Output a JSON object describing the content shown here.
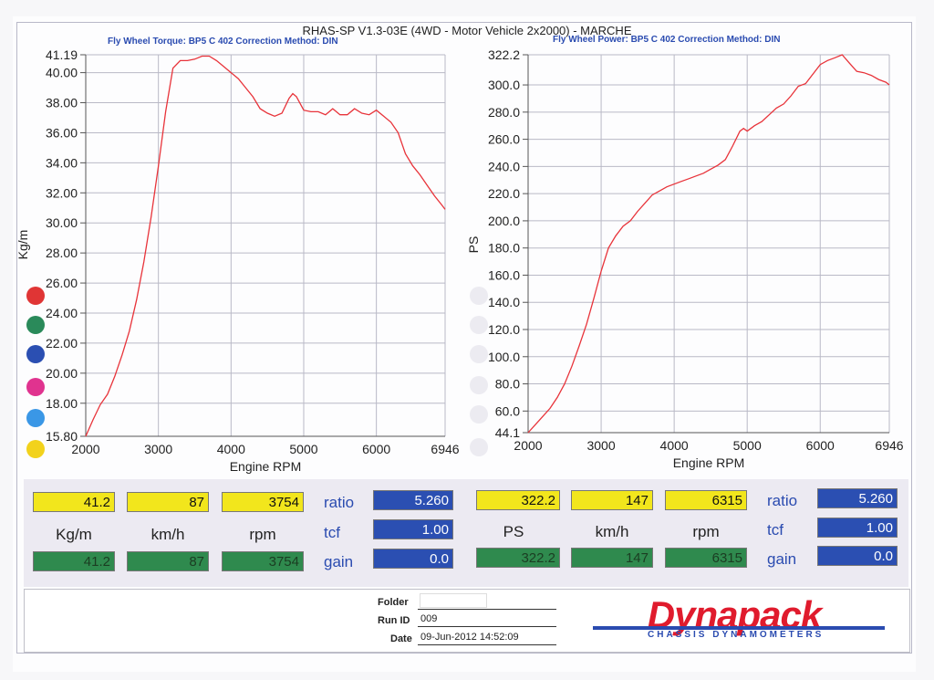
{
  "header": {
    "title": "RHAS-SP V1.3-03E  (4WD - Motor Vehicle 2x2000) - MARCHE",
    "left_subtitle": "Fly Wheel Torque: BP5 C 402      Correction Method: DIN",
    "right_subtitle": "Fly Wheel Power: BP5 C 402      Correction Method: DIN"
  },
  "chart_data": [
    {
      "type": "line",
      "xlabel": "Engine RPM",
      "ylabel": "Kg/m",
      "xlim": [
        2000,
        6946
      ],
      "ylim": [
        15.8,
        41.19
      ],
      "x_ticks": [
        "2000",
        "3000",
        "4000",
        "5000",
        "6000",
        "6946"
      ],
      "y_ticks": [
        "15.80",
        "18.00",
        "20.00",
        "22.00",
        "24.00",
        "26.00",
        "28.00",
        "30.00",
        "32.00",
        "34.00",
        "36.00",
        "38.00",
        "40.00",
        "41.19"
      ],
      "grid": true,
      "color": "#e8333a",
      "series": [
        {
          "x": [
            2000,
            2100,
            2200,
            2300,
            2400,
            2500,
            2600,
            2700,
            2800,
            2900,
            3000,
            3100,
            3200,
            3300,
            3400,
            3500,
            3600,
            3700,
            3800,
            3900,
            4000,
            4100,
            4200,
            4300,
            4400,
            4500,
            4600,
            4700,
            4800,
            4850,
            4900,
            5000,
            5100,
            5200,
            5300,
            5400,
            5500,
            5600,
            5700,
            5800,
            5900,
            6000,
            6100,
            6200,
            6300,
            6400,
            6500,
            6600,
            6700,
            6800,
            6900,
            6946
          ],
          "values": [
            15.8,
            16.9,
            17.9,
            18.6,
            19.8,
            21.2,
            22.8,
            24.9,
            27.4,
            30.4,
            33.8,
            37.4,
            40.3,
            40.8,
            40.8,
            40.9,
            41.1,
            41.1,
            40.8,
            40.4,
            40.0,
            39.6,
            39.0,
            38.4,
            37.6,
            37.3,
            37.1,
            37.3,
            38.3,
            38.6,
            38.4,
            37.5,
            37.4,
            37.4,
            37.2,
            37.6,
            37.2,
            37.2,
            37.6,
            37.3,
            37.2,
            37.5,
            37.1,
            36.7,
            36.0,
            34.6,
            33.8,
            33.2,
            32.5,
            31.8,
            31.2,
            30.9
          ]
        }
      ]
    },
    {
      "type": "line",
      "xlabel": "Engine RPM",
      "ylabel": "PS",
      "xlim": [
        2000,
        6946
      ],
      "ylim": [
        44.1,
        322.2
      ],
      "x_ticks": [
        "2000",
        "3000",
        "4000",
        "5000",
        "6000",
        "6946"
      ],
      "y_ticks": [
        "44.1",
        "60.0",
        "80.0",
        "100.0",
        "120.0",
        "140.0",
        "160.0",
        "180.0",
        "200.0",
        "220.0",
        "240.0",
        "260.0",
        "280.0",
        "300.0",
        "322.2"
      ],
      "grid": true,
      "color": "#e8333a",
      "series": [
        {
          "x": [
            2000,
            2100,
            2200,
            2300,
            2400,
            2500,
            2600,
            2700,
            2800,
            2900,
            3000,
            3100,
            3200,
            3300,
            3400,
            3500,
            3600,
            3700,
            3800,
            3900,
            4000,
            4100,
            4200,
            4300,
            4400,
            4500,
            4600,
            4700,
            4800,
            4900,
            4950,
            5000,
            5100,
            5200,
            5300,
            5400,
            5500,
            5600,
            5700,
            5800,
            5900,
            6000,
            6100,
            6200,
            6300,
            6400,
            6500,
            6600,
            6700,
            6800,
            6900,
            6946
          ],
          "values": [
            44.1,
            50.0,
            56.0,
            62.0,
            70.0,
            80.0,
            93.0,
            108.0,
            124.0,
            143.0,
            163.0,
            180.0,
            189.0,
            196.0,
            200.0,
            207.0,
            213.0,
            219.0,
            222.0,
            225.0,
            227.0,
            229.0,
            231.0,
            233.0,
            235.0,
            238.0,
            241.0,
            245.0,
            255.0,
            266.0,
            268.0,
            266.0,
            270.0,
            273.0,
            278.0,
            283.0,
            286.0,
            292.0,
            299.0,
            301.0,
            308.0,
            315.0,
            318.0,
            320.0,
            322.2,
            316.0,
            310.0,
            309.0,
            307.0,
            304.0,
            302.0,
            300.0
          ]
        }
      ]
    }
  ],
  "left_panel": {
    "max_torque": "41.2",
    "max_speed": "87",
    "max_rpm": "3754",
    "ratio_label": "ratio",
    "ratio_value": "5.260",
    "unit_torque": "Kg/m",
    "unit_speed": "km/h",
    "unit_rpm": "rpm",
    "tcf_label": "tcf",
    "tcf_value": "1.00",
    "cur_torque": "41.2",
    "cur_speed": "87",
    "cur_rpm": "3754",
    "gain_label": "gain",
    "gain_value": "0.0"
  },
  "right_panel": {
    "max_power": "322.2",
    "max_speed": "147",
    "max_rpm": "6315",
    "ratio_label": "ratio",
    "ratio_value": "5.260",
    "unit_power": "PS",
    "unit_speed": "km/h",
    "unit_rpm": "rpm",
    "tcf_label": "tcf",
    "tcf_value": "1.00",
    "cur_power": "322.2",
    "cur_speed": "147",
    "cur_rpm": "6315",
    "gain_label": "gain",
    "gain_value": "0.0"
  },
  "footer": {
    "folder_label": "Folder",
    "folder_value": "",
    "runid_label": "Run ID",
    "runid_value": "009",
    "date_label": "Date",
    "date_value": "09-Jun-2012  14:52:09"
  },
  "logo": {
    "word": "Dynapack",
    "tagline": "CHASSIS   DYNAMOMETERS"
  },
  "colors": {
    "legend_dots": [
      "#e03535",
      "#2a8a5a",
      "#2b4fb2",
      "#e0338f",
      "#3a97e6",
      "#f2d21c"
    ],
    "curve": "#e8333a",
    "yellow": "#f2e61c",
    "green": "#2f8a4e",
    "blue": "#2b4fb2"
  }
}
